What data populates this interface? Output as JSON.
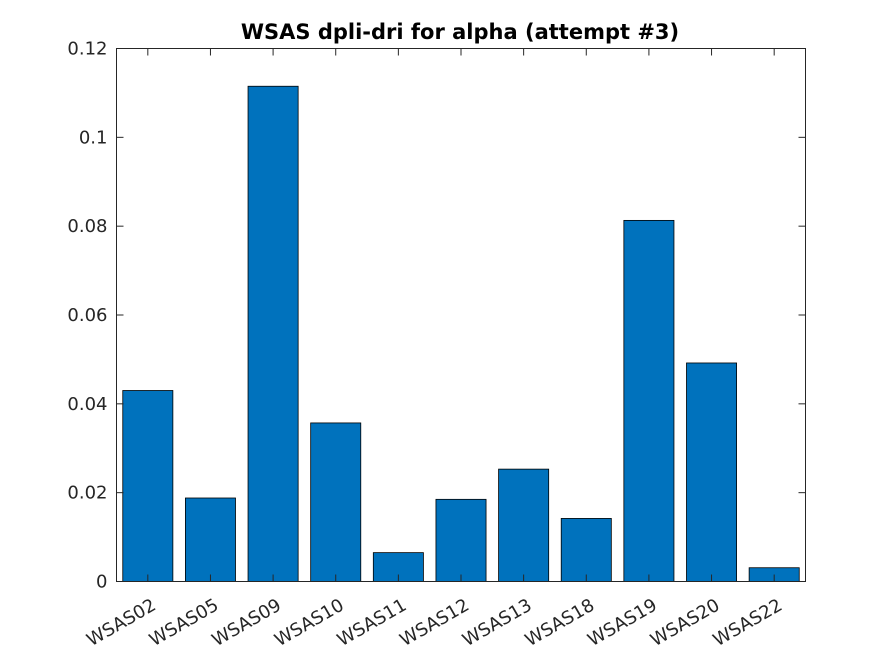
{
  "chart_data": {
    "type": "bar",
    "title": "WSAS dpli-dri for alpha (attempt #3)",
    "xlabel": "",
    "ylabel": "",
    "categories": [
      "WSAS02",
      "WSAS05",
      "WSAS09",
      "WSAS10",
      "WSAS11",
      "WSAS12",
      "WSAS13",
      "WSAS18",
      "WSAS19",
      "WSAS20",
      "WSAS22"
    ],
    "values": [
      0.043,
      0.0188,
      0.1115,
      0.0357,
      0.0065,
      0.0185,
      0.0253,
      0.0142,
      0.0813,
      0.0492,
      0.0031
    ],
    "ylim": [
      0,
      0.12
    ],
    "yticks": [
      0,
      0.02,
      0.04,
      0.06,
      0.08,
      0.1,
      0.12
    ],
    "ytick_labels": [
      "0",
      "0.02",
      "0.04",
      "0.06",
      "0.08",
      "0.1",
      "0.12"
    ],
    "grid": false,
    "bar_color": "#0072BD",
    "bar_edge_color": "#000000"
  }
}
